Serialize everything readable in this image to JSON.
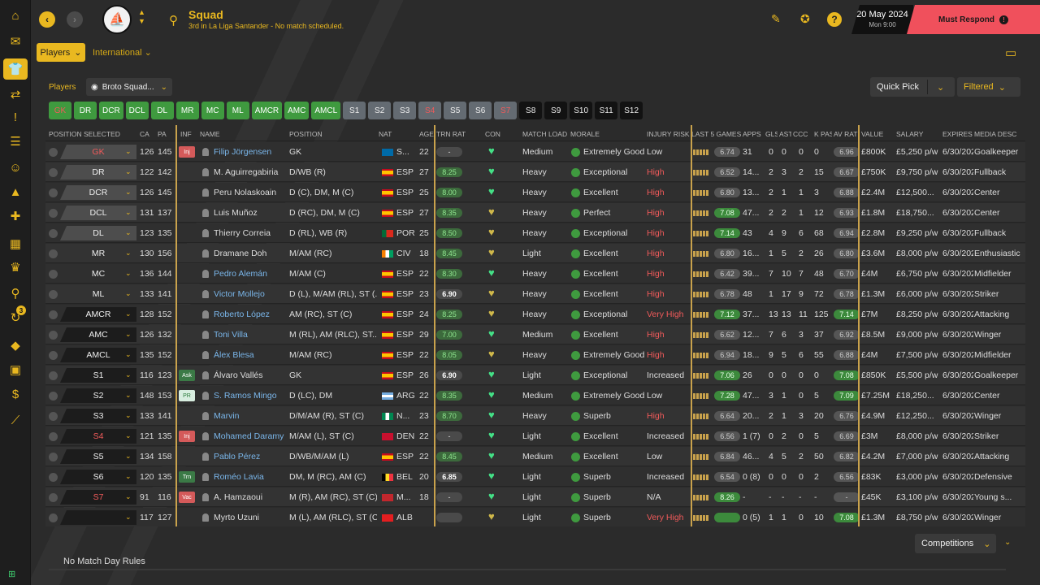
{
  "header": {
    "title": "Squad",
    "subtitle": "3rd in La Liga Santander - No match scheduled.",
    "date": "20 May 2024",
    "date_sub": "Mon 9:00",
    "must_respond": "Must Respond",
    "fm_logo": "FM"
  },
  "subnav": {
    "players_menu": "Players",
    "international_menu": "International"
  },
  "toolbar": {
    "players_label": "Players",
    "view": "Broto Squad...",
    "quick_pick": "Quick Pick",
    "filtered": "Filtered"
  },
  "position_buttons": [
    {
      "label": "GK",
      "style": "gk"
    },
    {
      "label": "DR",
      "style": "g"
    },
    {
      "label": "DCR",
      "style": "g"
    },
    {
      "label": "DCL",
      "style": "g"
    },
    {
      "label": "DL",
      "style": "g"
    },
    {
      "label": "MR",
      "style": "g"
    },
    {
      "label": "MC",
      "style": "g"
    },
    {
      "label": "ML",
      "style": "g"
    },
    {
      "label": "AMCR",
      "style": "g"
    },
    {
      "label": "AMC",
      "style": "g"
    },
    {
      "label": "AMCL",
      "style": "g"
    },
    {
      "label": "S1",
      "style": "gr"
    },
    {
      "label": "S2",
      "style": "gr"
    },
    {
      "label": "S3",
      "style": "gr"
    },
    {
      "label": "S4",
      "style": "grr"
    },
    {
      "label": "S5",
      "style": "gr"
    },
    {
      "label": "S6",
      "style": "gr"
    },
    {
      "label": "S7",
      "style": "grr"
    },
    {
      "label": "S8",
      "style": "bk"
    },
    {
      "label": "S9",
      "style": "bk"
    },
    {
      "label": "S10",
      "style": "bk"
    },
    {
      "label": "S11",
      "style": "bk"
    },
    {
      "label": "S12",
      "style": "bk"
    }
  ],
  "columns": [
    "POSITION SELECTED",
    "CA",
    "PA",
    "INF",
    "NAME",
    "POSITION",
    "NAT",
    "AGE",
    "TRN RAT",
    "CON",
    "MATCH LOAD",
    "MORALE",
    "INJURY RISK",
    "LAST 5 GAMES",
    "APPS",
    "GLS",
    "AST",
    "CCC",
    "K PAS",
    "AV RAT",
    "VALUE",
    "SALARY",
    "EXPIRES",
    "MEDIA DESC"
  ],
  "players": [
    {
      "sel": "GK",
      "selstyle": "",
      "selred": true,
      "ca": "126",
      "pa": "145",
      "inf": "Inj",
      "inftype": "inj",
      "name": "Filip Jörgensen",
      "link": true,
      "pos": "GK",
      "nat": "S...",
      "flag": "se",
      "age": "22",
      "trn": "-",
      "trntype": "dash",
      "con": "g",
      "load": "Medium",
      "morale": "Extremely Good",
      "risk": "Low",
      "riskcolor": "#dddddd",
      "last5": "6.74",
      "l5green": false,
      "apps": "31",
      "gls": "0",
      "ast": "0",
      "ccc": "0",
      "kpas": "0",
      "avrat": "6.96",
      "avgreen": false,
      "value": "£800K",
      "salary": "£5,250 p/w",
      "expires": "6/30/2024",
      "media": "Goalkeeper"
    },
    {
      "sel": "DR",
      "selstyle": "",
      "selred": false,
      "ca": "122",
      "pa": "142",
      "inf": "",
      "inftype": "",
      "name": "M. Aguirregabiria",
      "link": false,
      "pos": "D/WB (R)",
      "nat": "ESP",
      "flag": "es",
      "age": "27",
      "trn": "8.25",
      "trntype": "green",
      "con": "g",
      "load": "Heavy",
      "morale": "Exceptional",
      "risk": "High",
      "riskcolor": "#f05a5a",
      "last5": "6.52",
      "l5green": false,
      "apps": "14...",
      "gls": "2",
      "ast": "3",
      "ccc": "2",
      "kpas": "15",
      "avrat": "6.67",
      "avgreen": false,
      "value": "£750K",
      "salary": "£9,750 p/w",
      "expires": "6/30/2027",
      "media": "Fullback"
    },
    {
      "sel": "DCR",
      "selstyle": "",
      "selred": false,
      "ca": "126",
      "pa": "145",
      "inf": "",
      "inftype": "",
      "name": "Peru Nolaskoain",
      "link": false,
      "pos": "D (C), DM, M (C)",
      "nat": "ESP",
      "flag": "es",
      "age": "25",
      "trn": "8.00",
      "trntype": "green",
      "con": "g",
      "load": "Heavy",
      "morale": "Excellent",
      "risk": "High",
      "riskcolor": "#f05a5a",
      "last5": "6.80",
      "l5green": false,
      "apps": "13...",
      "gls": "2",
      "ast": "1",
      "ccc": "1",
      "kpas": "3",
      "avrat": "6.88",
      "avgreen": false,
      "value": "£2.4M",
      "salary": "£12,500...",
      "expires": "6/30/2027",
      "media": "Center"
    },
    {
      "sel": "DCL",
      "selstyle": "",
      "selred": false,
      "ca": "131",
      "pa": "137",
      "inf": "",
      "inftype": "",
      "name": "Luis Muñoz",
      "link": false,
      "pos": "D (RC), DM, M (C)",
      "nat": "ESP",
      "flag": "es",
      "age": "27",
      "trn": "8.35",
      "trntype": "green",
      "con": "y",
      "load": "Heavy",
      "morale": "Perfect",
      "risk": "High",
      "riskcolor": "#f05a5a",
      "last5": "7.08",
      "l5green": true,
      "apps": "47...",
      "gls": "2",
      "ast": "2",
      "ccc": "1",
      "kpas": "12",
      "avrat": "6.93",
      "avgreen": false,
      "value": "£1.8M",
      "salary": "£18,750...",
      "expires": "6/30/2027",
      "media": "Center"
    },
    {
      "sel": "DL",
      "selstyle": "",
      "selred": false,
      "ca": "123",
      "pa": "135",
      "inf": "",
      "inftype": "",
      "name": "Thierry Correia",
      "link": false,
      "pos": "D (RL), WB (R)",
      "nat": "POR",
      "flag": "pt",
      "age": "25",
      "trn": "8.50",
      "trntype": "green",
      "con": "y",
      "load": "Heavy",
      "morale": "Exceptional",
      "risk": "High",
      "riskcolor": "#f05a5a",
      "last5": "7.14",
      "l5green": true,
      "apps": "43",
      "gls": "4",
      "ast": "9",
      "ccc": "6",
      "kpas": "68",
      "avrat": "6.94",
      "avgreen": false,
      "value": "£2.8M",
      "salary": "£9,250 p/w",
      "expires": "6/30/2026",
      "media": "Fullback"
    },
    {
      "sel": "MR",
      "selstyle": "none",
      "selred": false,
      "ca": "130",
      "pa": "156",
      "inf": "",
      "inftype": "",
      "name": "Dramane Doh",
      "link": false,
      "pos": "M/AM (RC)",
      "nat": "CIV",
      "flag": "ci",
      "age": "18",
      "trn": "8.45",
      "trntype": "green",
      "con": "y",
      "load": "Light",
      "morale": "Excellent",
      "risk": "High",
      "riskcolor": "#f05a5a",
      "last5": "6.80",
      "l5green": false,
      "apps": "16...",
      "gls": "1",
      "ast": "5",
      "ccc": "2",
      "kpas": "26",
      "avrat": "6.80",
      "avgreen": false,
      "value": "£3.6M",
      "salary": "£8,000 p/w",
      "expires": "6/30/2028",
      "media": "Enthusiastic"
    },
    {
      "sel": "MC",
      "selstyle": "none",
      "selred": false,
      "ca": "136",
      "pa": "144",
      "inf": "",
      "inftype": "",
      "name": "Pedro Alemán",
      "link": true,
      "pos": "M/AM (C)",
      "nat": "ESP",
      "flag": "es",
      "age": "22",
      "trn": "8.30",
      "trntype": "green",
      "con": "g",
      "load": "Heavy",
      "morale": "Excellent",
      "risk": "High",
      "riskcolor": "#f05a5a",
      "last5": "6.42",
      "l5green": false,
      "apps": "39...",
      "gls": "7",
      "ast": "10",
      "ccc": "7",
      "kpas": "48",
      "avrat": "6.70",
      "avgreen": false,
      "value": "£4M",
      "salary": "£6,750 p/w",
      "expires": "6/30/2024",
      "media": "Midfielder"
    },
    {
      "sel": "ML",
      "selstyle": "none",
      "selred": false,
      "ca": "133",
      "pa": "141",
      "inf": "",
      "inftype": "",
      "name": "Victor Mollejo",
      "link": true,
      "pos": "D (L), M/AM (RL), ST (...",
      "nat": "ESP",
      "flag": "es",
      "age": "23",
      "trn": "6.90",
      "trntype": "white",
      "con": "y",
      "load": "Heavy",
      "morale": "Excellent",
      "risk": "High",
      "riskcolor": "#f05a5a",
      "last5": "6.78",
      "l5green": false,
      "apps": "48",
      "gls": "1",
      "ast": "17",
      "ccc": "9",
      "kpas": "72",
      "avrat": "6.78",
      "avgreen": false,
      "value": "£1.3M",
      "salary": "£6,000 p/w",
      "expires": "6/30/2026",
      "media": "Striker"
    },
    {
      "sel": "AMCR",
      "selstyle": "dk",
      "selred": false,
      "ca": "128",
      "pa": "152",
      "inf": "",
      "inftype": "",
      "name": "Roberto López",
      "link": true,
      "pos": "AM (RC), ST (C)",
      "nat": "ESP",
      "flag": "es",
      "age": "24",
      "trn": "8.25",
      "trntype": "green",
      "con": "y",
      "load": "Heavy",
      "morale": "Exceptional",
      "risk": "Very High",
      "riskcolor": "#f05a5a",
      "last5": "7.12",
      "l5green": true,
      "apps": "37...",
      "gls": "13",
      "ast": "13",
      "ccc": "11",
      "kpas": "125",
      "avrat": "7.14",
      "avgreen": true,
      "value": "£7M",
      "salary": "£8,250 p/w",
      "expires": "6/30/2024",
      "media": "Attacking"
    },
    {
      "sel": "AMC",
      "selstyle": "dk",
      "selred": false,
      "ca": "126",
      "pa": "132",
      "inf": "",
      "inftype": "",
      "name": "Toni Villa",
      "link": true,
      "pos": "M (RL), AM (RLC), ST...",
      "nat": "ESP",
      "flag": "es",
      "age": "29",
      "trn": "7.00",
      "trntype": "green",
      "con": "g",
      "load": "Medium",
      "morale": "Excellent",
      "risk": "High",
      "riskcolor": "#f05a5a",
      "last5": "6.62",
      "l5green": false,
      "apps": "12...",
      "gls": "7",
      "ast": "6",
      "ccc": "3",
      "kpas": "37",
      "avrat": "6.92",
      "avgreen": false,
      "value": "£8.5M",
      "salary": "£9,000 p/w",
      "expires": "6/30/2024",
      "media": "Winger"
    },
    {
      "sel": "AMCL",
      "selstyle": "dk",
      "selred": false,
      "ca": "135",
      "pa": "152",
      "inf": "",
      "inftype": "",
      "name": "Álex Blesa",
      "link": true,
      "pos": "M/AM (RC)",
      "nat": "ESP",
      "flag": "es",
      "age": "22",
      "trn": "8.05",
      "trntype": "green",
      "con": "y",
      "load": "Heavy",
      "morale": "Extremely Good",
      "risk": "High",
      "riskcolor": "#f05a5a",
      "last5": "6.94",
      "l5green": false,
      "apps": "18...",
      "gls": "9",
      "ast": "5",
      "ccc": "6",
      "kpas": "55",
      "avrat": "6.88",
      "avgreen": false,
      "value": "£4M",
      "salary": "£7,500 p/w",
      "expires": "6/30/2024",
      "media": "Midfielder"
    },
    {
      "sel": "S1",
      "selstyle": "dk",
      "selred": false,
      "ca": "116",
      "pa": "123",
      "inf": "Ask",
      "inftype": "ask",
      "name": "Álvaro Vallés",
      "link": false,
      "pos": "GK",
      "nat": "ESP",
      "flag": "es",
      "age": "26",
      "trn": "6.90",
      "trntype": "white",
      "con": "g",
      "load": "Light",
      "morale": "Exceptional",
      "risk": "Increased",
      "riskcolor": "#dddddd",
      "last5": "7.06",
      "l5green": true,
      "apps": "26",
      "gls": "0",
      "ast": "0",
      "ccc": "0",
      "kpas": "0",
      "avrat": "7.08",
      "avgreen": true,
      "value": "£850K",
      "salary": "£5,500 p/w",
      "expires": "6/30/2025",
      "media": "Goalkeeper"
    },
    {
      "sel": "S2",
      "selstyle": "dk",
      "selred": false,
      "ca": "148",
      "pa": "153",
      "inf": "PR",
      "inftype": "pr",
      "name": "S. Ramos Mingo",
      "link": true,
      "pos": "D (LC), DM",
      "nat": "ARG",
      "flag": "ar",
      "age": "22",
      "trn": "8.35",
      "trntype": "green",
      "con": "g",
      "load": "Medium",
      "morale": "Extremely Good",
      "risk": "Low",
      "riskcolor": "#dddddd",
      "last5": "7.28",
      "l5green": true,
      "apps": "47...",
      "gls": "3",
      "ast": "1",
      "ccc": "0",
      "kpas": "5",
      "avrat": "7.09",
      "avgreen": true,
      "value": "£7.25M",
      "salary": "£18,250...",
      "expires": "6/30/2024",
      "media": "Center"
    },
    {
      "sel": "S3",
      "selstyle": "dk",
      "selred": false,
      "ca": "133",
      "pa": "141",
      "inf": "",
      "inftype": "",
      "name": "Marvin",
      "link": true,
      "pos": "D/M/AM (R), ST (C)",
      "nat": "N...",
      "flag": "ng",
      "age": "23",
      "trn": "8.70",
      "trntype": "green",
      "con": "g",
      "load": "Heavy",
      "morale": "Superb",
      "risk": "High",
      "riskcolor": "#f05a5a",
      "last5": "6.64",
      "l5green": false,
      "apps": "20...",
      "gls": "2",
      "ast": "1",
      "ccc": "3",
      "kpas": "20",
      "avrat": "6.76",
      "avgreen": false,
      "value": "£4.9M",
      "salary": "£12,250...",
      "expires": "6/30/2024",
      "media": "Winger"
    },
    {
      "sel": "S4",
      "selstyle": "dk",
      "selred": true,
      "ca": "121",
      "pa": "135",
      "inf": "Inj",
      "inftype": "inj",
      "name": "Mohamed Daramy",
      "link": true,
      "pos": "M/AM (L), ST (C)",
      "nat": "DEN",
      "flag": "dk",
      "age": "22",
      "trn": "-",
      "trntype": "dash",
      "con": "g",
      "load": "Light",
      "morale": "Excellent",
      "risk": "Increased",
      "riskcolor": "#dddddd",
      "last5": "6.56",
      "l5green": false,
      "apps": "1 (7)",
      "gls": "0",
      "ast": "2",
      "ccc": "0",
      "kpas": "5",
      "avrat": "6.69",
      "avgreen": false,
      "value": "£3M",
      "salary": "£8,000 p/w",
      "expires": "6/30/2024",
      "media": "Striker"
    },
    {
      "sel": "S5",
      "selstyle": "dk",
      "selred": false,
      "ca": "134",
      "pa": "158",
      "inf": "",
      "inftype": "",
      "name": "Pablo Pérez",
      "link": true,
      "pos": "D/WB/M/AM (L)",
      "nat": "ESP",
      "flag": "es",
      "age": "22",
      "trn": "8.45",
      "trntype": "green",
      "con": "g",
      "load": "Medium",
      "morale": "Excellent",
      "risk": "Low",
      "riskcolor": "#dddddd",
      "last5": "6.84",
      "l5green": false,
      "apps": "46...",
      "gls": "4",
      "ast": "5",
      "ccc": "2",
      "kpas": "50",
      "avrat": "6.82",
      "avgreen": false,
      "value": "£4.2M",
      "salary": "£7,000 p/w",
      "expires": "6/30/2024",
      "media": "Attacking"
    },
    {
      "sel": "S6",
      "selstyle": "dk",
      "selred": false,
      "ca": "120",
      "pa": "135",
      "inf": "Trn",
      "inftype": "trn",
      "name": "Roméo Lavia",
      "link": true,
      "pos": "DM, M (RC), AM (C)",
      "nat": "BEL",
      "flag": "be",
      "age": "20",
      "trn": "6.85",
      "trntype": "white",
      "con": "g",
      "load": "Light",
      "morale": "Superb",
      "risk": "Increased",
      "riskcolor": "#dddddd",
      "last5": "6.54",
      "l5green": false,
      "apps": "0 (8)",
      "gls": "0",
      "ast": "0",
      "ccc": "0",
      "kpas": "2",
      "avrat": "6.56",
      "avgreen": false,
      "value": "£83K",
      "salary": "£3,000 p/w",
      "expires": "6/30/2024",
      "media": "Defensive"
    },
    {
      "sel": "S7",
      "selstyle": "dk",
      "selred": true,
      "ca": "91",
      "pa": "116",
      "inf": "Vac",
      "inftype": "vac",
      "name": "A. Hamzaoui",
      "link": false,
      "pos": "M (R), AM (RC), ST (C)",
      "nat": "M...",
      "flag": "ma",
      "age": "18",
      "trn": "-",
      "trntype": "dash",
      "con": "g",
      "load": "Light",
      "morale": "Superb",
      "risk": "N/A",
      "riskcolor": "#dddddd",
      "last5": "8.26",
      "l5green": true,
      "apps": "-",
      "gls": "-",
      "ast": "-",
      "ccc": "-",
      "kpas": "-",
      "avrat": "-",
      "avgreen": false,
      "value": "£45K",
      "salary": "£3,100 p/w",
      "expires": "6/30/2026",
      "media": "Young s..."
    },
    {
      "sel": "",
      "selstyle": "dk",
      "selred": false,
      "ca": "117",
      "pa": "127",
      "inf": "",
      "inftype": "",
      "name": "Myrto Uzuni",
      "link": false,
      "pos": "M (L), AM (RLC), ST (C)",
      "nat": "ALB",
      "flag": "al",
      "age": "",
      "trn": "",
      "trntype": "dash",
      "con": "y",
      "load": "Light",
      "morale": "Superb",
      "risk": "Very High",
      "riskcolor": "#f05a5a",
      "last5": "",
      "l5green": true,
      "apps": "0 (5)",
      "gls": "1",
      "ast": "1",
      "ccc": "0",
      "kpas": "10",
      "avrat": "7.08",
      "avgreen": true,
      "value": "£1.3M",
      "salary": "£8,750 p/w",
      "expires": "6/30/2026",
      "media": "Winger"
    }
  ],
  "bottom": {
    "competitions": "Competitions",
    "match_rules": "No Match Day Rules"
  },
  "colors": {
    "accent": "#e9b820",
    "alert": "#f0505c",
    "green": "#3f9a3f"
  }
}
